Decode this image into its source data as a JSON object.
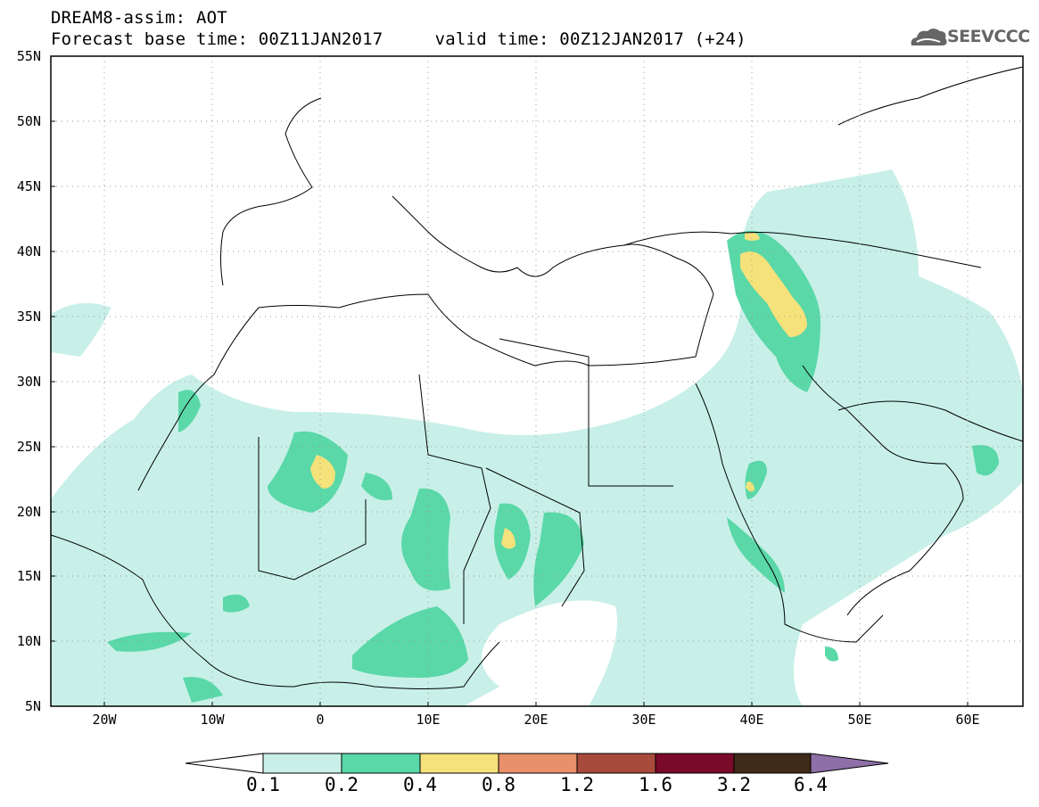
{
  "header": {
    "line1": "DREAM8-assim: AOT",
    "line2": "Forecast base time: 00Z11JAN2017     valid time: 00Z12JAN2017 (+24)"
  },
  "logo": {
    "text": "SEEVCCC",
    "icon": "cloud-logo-icon"
  },
  "map": {
    "lon_range": [
      -25,
      65
    ],
    "lat_range": [
      5,
      55
    ],
    "grid": "dotted",
    "lat_labels": [
      "5N",
      "10N",
      "15N",
      "20N",
      "25N",
      "30N",
      "35N",
      "40N",
      "45N",
      "50N",
      "55N"
    ],
    "lon_labels": [
      "20W",
      "10W",
      "0",
      "10E",
      "20E",
      "30E",
      "40E",
      "50E",
      "60E"
    ]
  },
  "colorbar": {
    "labels": [
      "0.1",
      "0.2",
      "0.4",
      "0.8",
      "1.2",
      "1.6",
      "3.2",
      "6.4"
    ],
    "colors": [
      "#c8f0e8",
      "#5ad8a8",
      "#f5e27a",
      "#e8906a",
      "#a84a3c",
      "#7a0a2a",
      "#3e2a18",
      "#8e6fa8"
    ]
  }
}
